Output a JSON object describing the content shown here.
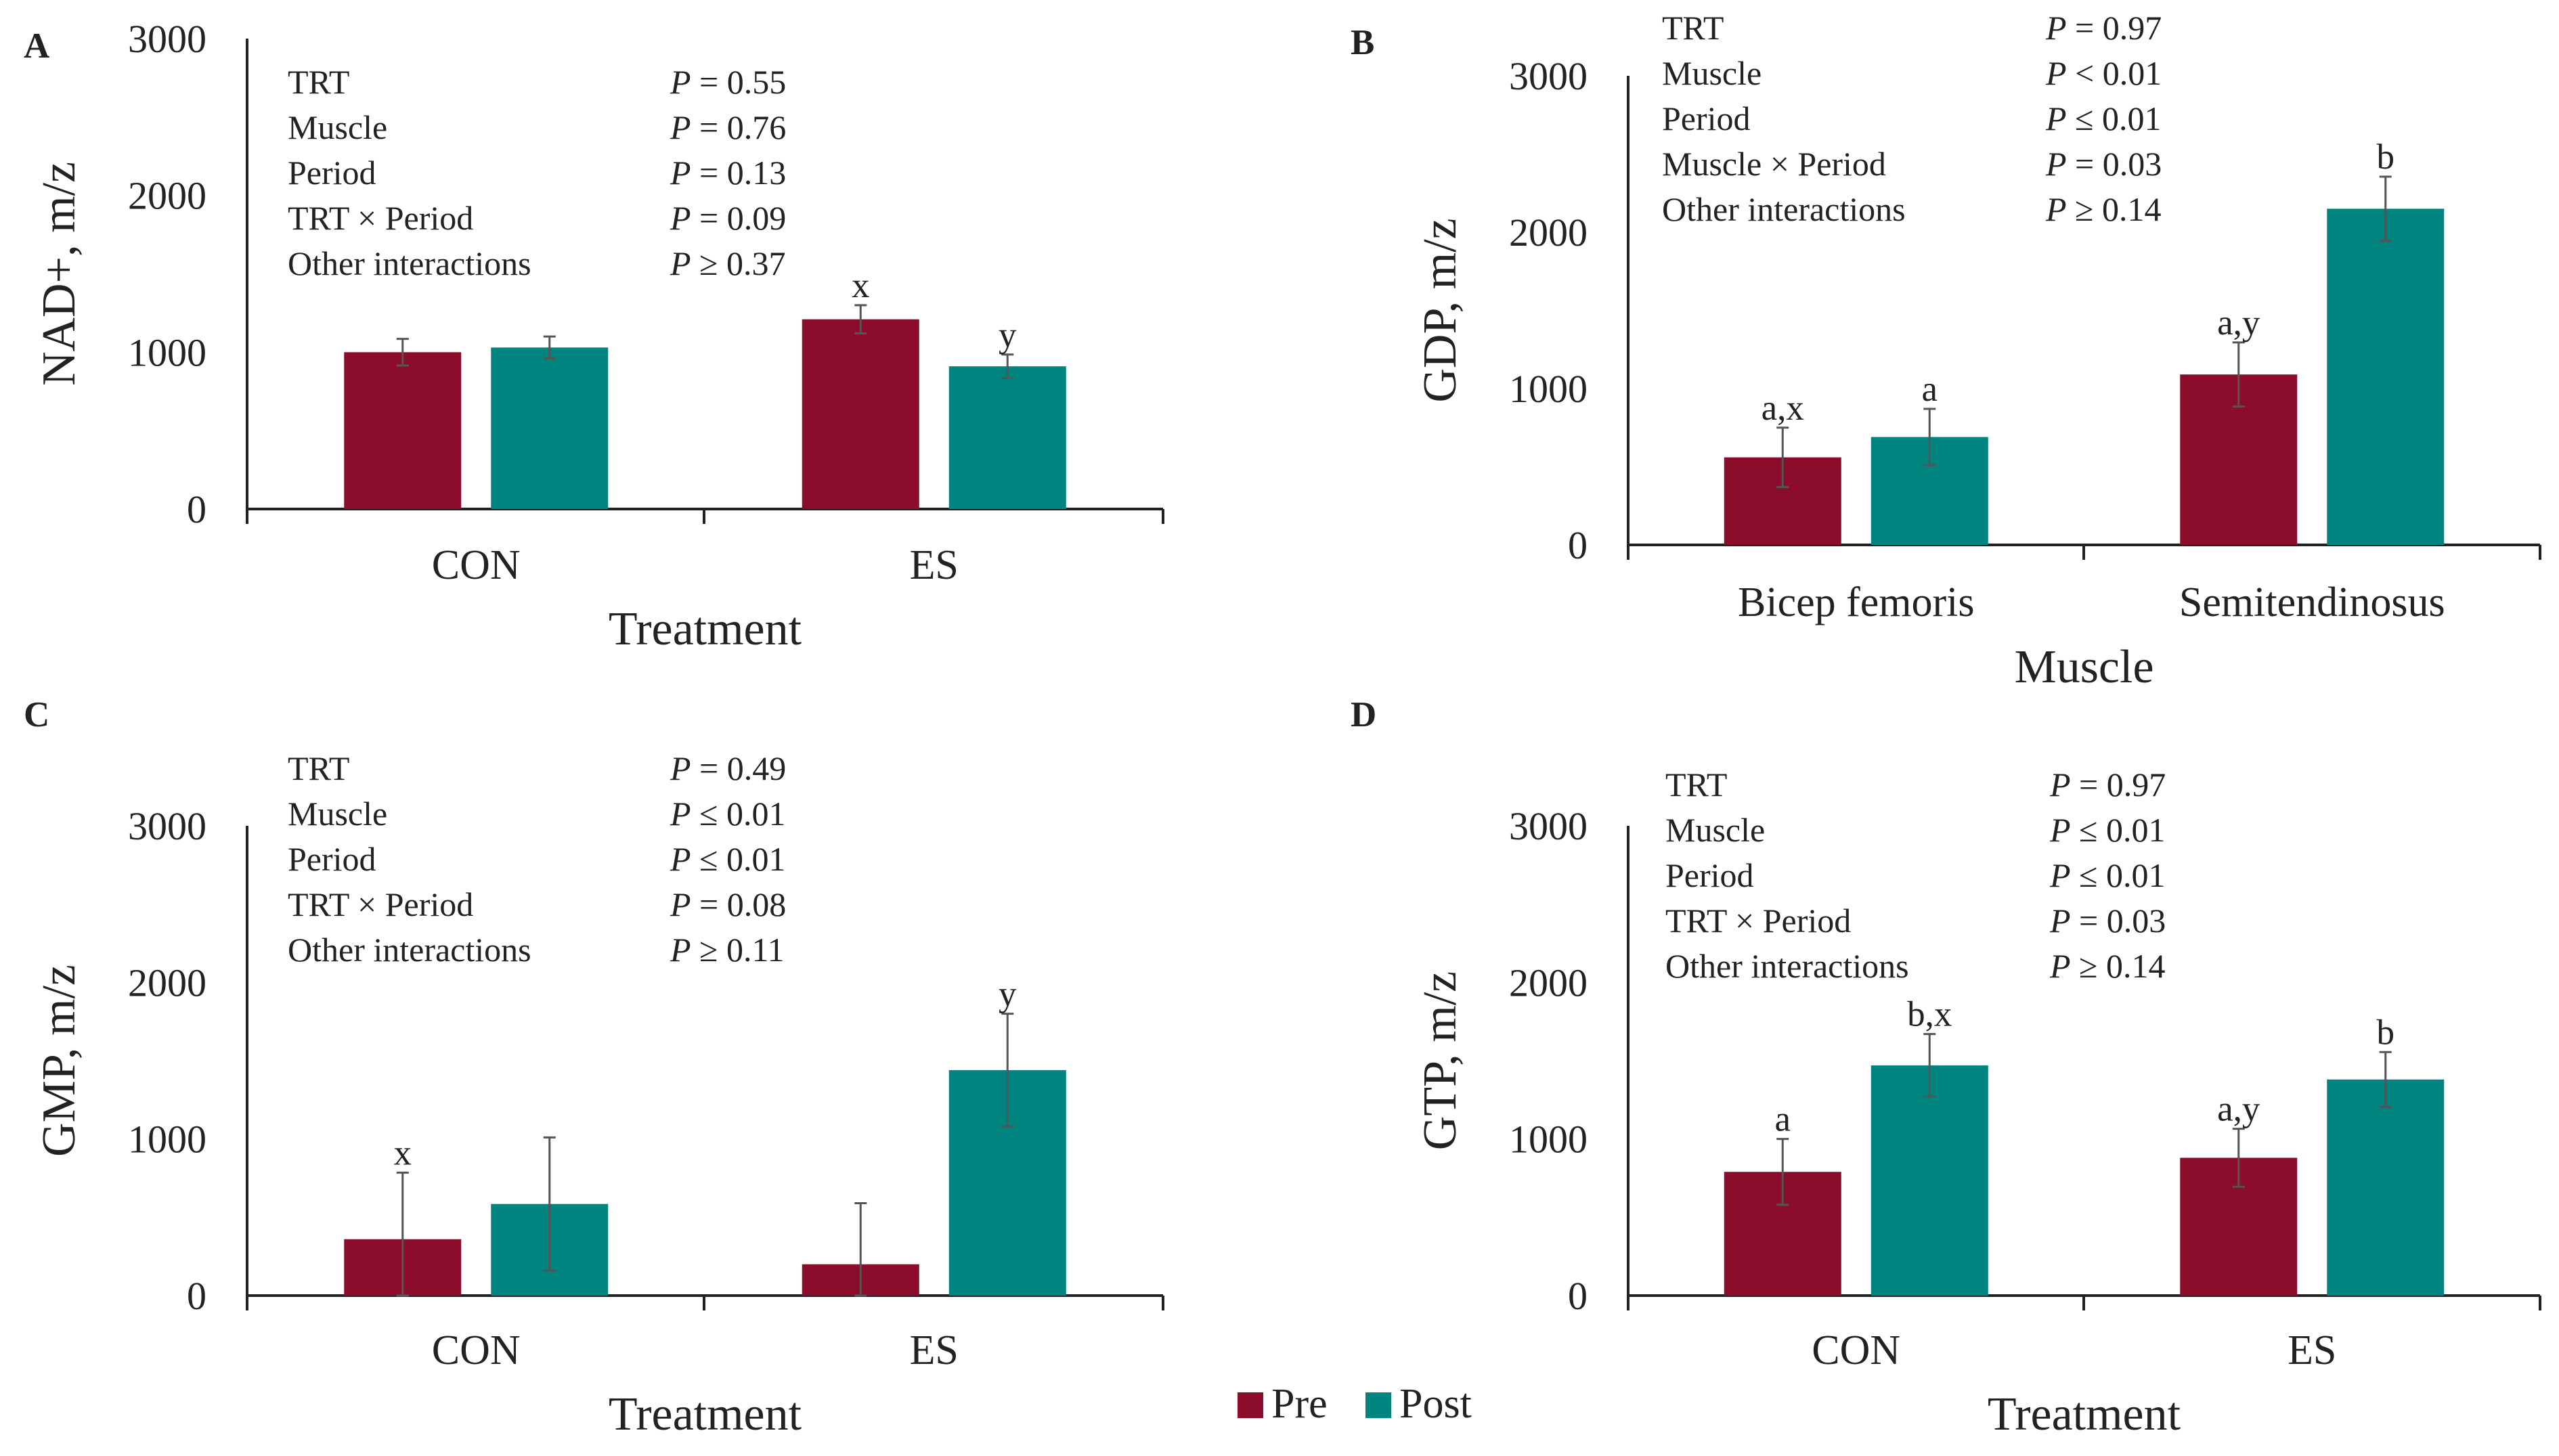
{
  "colors": {
    "pre": "#8B0D2B",
    "post": "#00847F",
    "axis": "#222222",
    "text": "#222222"
  },
  "legend": [
    {
      "name": "Pre",
      "color_key": "pre"
    },
    {
      "name": "Post",
      "color_key": "post"
    }
  ],
  "chart_data": [
    {
      "panel": "A",
      "type": "bar",
      "ylabel": "NAD+, m/z",
      "xlabel": "Treatment",
      "ylim": [
        0,
        3000
      ],
      "yticks": [
        "0",
        "1000",
        "2000",
        "3000"
      ],
      "categories": [
        "CON",
        "ES"
      ],
      "series": [
        {
          "name": "Pre",
          "values": [
            1000,
            1210
          ],
          "errors": [
            85,
            90
          ],
          "labels": [
            "",
            "x"
          ]
        },
        {
          "name": "Post",
          "values": [
            1030,
            910
          ],
          "errors": [
            70,
            75
          ],
          "labels": [
            "",
            "y"
          ]
        }
      ],
      "stats": [
        {
          "term": "TRT",
          "p": "P = 0.55"
        },
        {
          "term": "Muscle",
          "p": "P = 0.76"
        },
        {
          "term": "Period",
          "p": "P = 0.13"
        },
        {
          "term": "TRT × Period",
          "p": "P = 0.09"
        },
        {
          "term": "Other interactions",
          "p": "P ≥ 0.37"
        }
      ]
    },
    {
      "panel": "B",
      "type": "bar",
      "ylabel": "GDP, m/z",
      "xlabel": "Muscle",
      "ylim": [
        0,
        3000
      ],
      "yticks": [
        "0",
        "1000",
        "2000",
        "3000"
      ],
      "categories": [
        "Bicep femoris",
        "Semitendinosus"
      ],
      "series": [
        {
          "name": "Pre",
          "values": [
            560,
            1090
          ],
          "errors": [
            190,
            205
          ],
          "labels": [
            "a,x",
            "a,y"
          ]
        },
        {
          "name": "Post",
          "values": [
            690,
            2150
          ],
          "errors": [
            180,
            205
          ],
          "labels": [
            "a",
            "b"
          ]
        }
      ],
      "stats": [
        {
          "term": "TRT",
          "p": "P = 0.97"
        },
        {
          "term": "Muscle",
          "p": "P < 0.01"
        },
        {
          "term": "Period",
          "p": "P ≤ 0.01"
        },
        {
          "term": "Muscle × Period",
          "p": "P = 0.03"
        },
        {
          "term": "Other interactions",
          "p": "P ≥ 0.14"
        }
      ]
    },
    {
      "panel": "C",
      "type": "bar",
      "ylabel": "GMP, m/z",
      "xlabel": "Treatment",
      "ylim": [
        0,
        3000
      ],
      "yticks": [
        "0",
        "1000",
        "2000",
        "3000"
      ],
      "categories": [
        "CON",
        "ES"
      ],
      "series": [
        {
          "name": "Pre",
          "values": [
            360,
            200
          ],
          "errors": [
            425,
            390
          ],
          "labels": [
            "x",
            ""
          ]
        },
        {
          "name": "Post",
          "values": [
            585,
            1440
          ],
          "errors": [
            425,
            360
          ],
          "labels": [
            "",
            "y"
          ]
        }
      ],
      "stats": [
        {
          "term": "TRT",
          "p": "P = 0.49"
        },
        {
          "term": "Muscle",
          "p": "P ≤ 0.01"
        },
        {
          "term": "Period",
          "p": "P ≤ 0.01"
        },
        {
          "term": "TRT × Period",
          "p": "P = 0.08"
        },
        {
          "term": "Other interactions",
          "p": "P ≥ 0.11"
        }
      ]
    },
    {
      "panel": "D",
      "type": "bar",
      "ylabel": "GTP, m/z",
      "xlabel": "Treatment",
      "ylim": [
        0,
        3000
      ],
      "yticks": [
        "0",
        "1000",
        "2000",
        "3000"
      ],
      "categories": [
        "CON",
        "ES"
      ],
      "series": [
        {
          "name": "Pre",
          "values": [
            790,
            880
          ],
          "errors": [
            210,
            185
          ],
          "labels": [
            "a",
            "a,y"
          ]
        },
        {
          "name": "Post",
          "values": [
            1470,
            1380
          ],
          "errors": [
            200,
            175
          ],
          "labels": [
            "b,x",
            "b"
          ]
        }
      ],
      "stats": [
        {
          "term": "TRT",
          "p": "P = 0.97"
        },
        {
          "term": "Muscle",
          "p": "P ≤ 0.01"
        },
        {
          "term": "Period",
          "p": "P ≤ 0.01"
        },
        {
          "term": "TRT × Period",
          "p": "P = 0.03"
        },
        {
          "term": "Other interactions",
          "p": "P ≥ 0.14"
        }
      ]
    }
  ]
}
